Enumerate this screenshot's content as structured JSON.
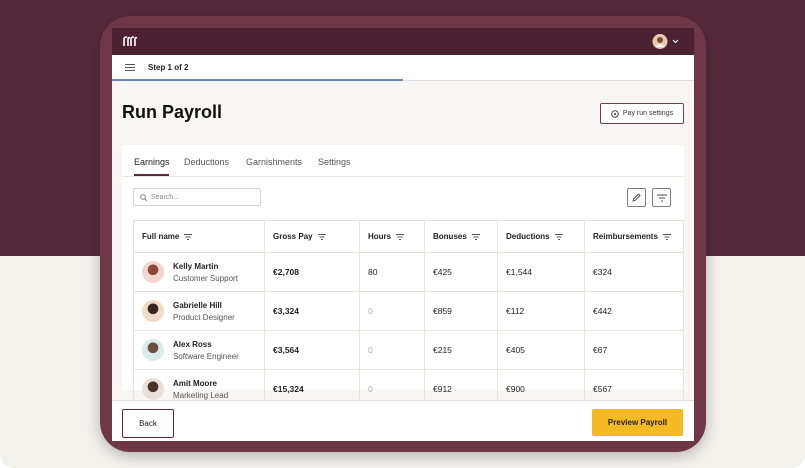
{
  "header": {
    "step": "Step 1 of 2"
  },
  "title": "Run Payroll",
  "settings_button": "Pay run settings",
  "tabs": [
    "Earnings",
    "Deductions",
    "Garnishments",
    "Settings"
  ],
  "search_placeholder": "Search...",
  "table": {
    "columns": [
      "Full name",
      "Gross Pay",
      "Hours",
      "Bonuses",
      "Deductions",
      "Reimbursements"
    ],
    "rows": [
      {
        "name": "Kelly Martin",
        "role": "Customer Support",
        "gross_pay": "€2,708",
        "hours": "80",
        "bonuses": "€425",
        "deductions": "€1,544",
        "reimbursements": "€324"
      },
      {
        "name": "Gabrielle Hill",
        "role": "Product Designer",
        "gross_pay": "€3,324",
        "hours": "0",
        "bonuses": "€859",
        "deductions": "€112",
        "reimbursements": "€442"
      },
      {
        "name": "Alex Ross",
        "role": "Software Engineer",
        "gross_pay": "€3,564",
        "hours": "0",
        "bonuses": "€215",
        "deductions": "€405",
        "reimbursements": "€67"
      },
      {
        "name": "Amit Moore",
        "role": "Marketing Lead",
        "gross_pay": "€15,324",
        "hours": "0",
        "bonuses": "€912",
        "deductions": "€900",
        "reimbursements": "€567"
      }
    ]
  },
  "footer": {
    "back": "Back",
    "next": "Preview Payroll"
  }
}
